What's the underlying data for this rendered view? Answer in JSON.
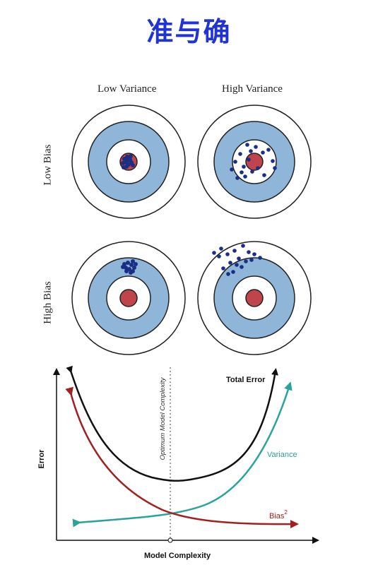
{
  "title": "准与确",
  "targets": {
    "col_labels": [
      "Low Variance",
      "High Variance"
    ],
    "row_labels": [
      "Low Bias",
      "High Bias"
    ],
    "colors": {
      "ring_blue": "#8fb6d9",
      "bullseye": "#c0444b",
      "dot": "#1b2e86",
      "stroke": "#222222"
    }
  },
  "tradeoff": {
    "y_axis_label": "Error",
    "x_axis_label": "Model Complexity",
    "optimum_label": "Optimum Model Complexity",
    "curves": {
      "total": {
        "label": "Total Error",
        "color": "#111111"
      },
      "variance": {
        "label": "Variance",
        "color": "#2aa39a"
      },
      "bias": {
        "label": "Bias",
        "superscript": "2",
        "color": "#a32020"
      }
    }
  }
}
